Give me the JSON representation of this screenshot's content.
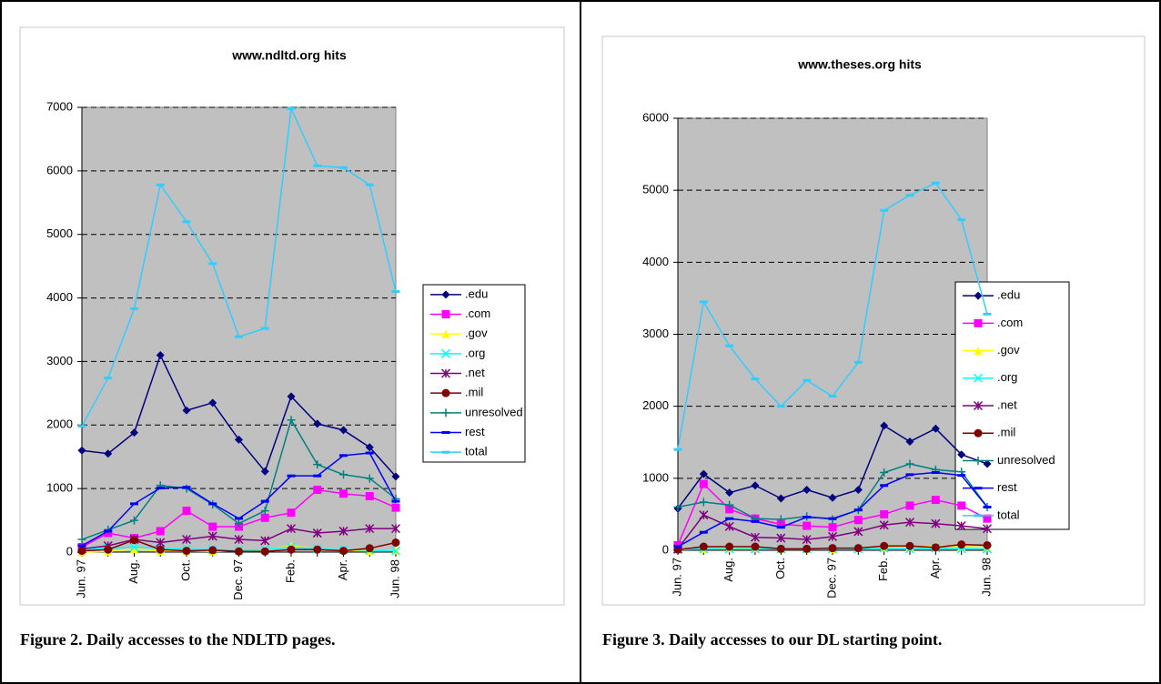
{
  "chart_data": [
    {
      "type": "line",
      "title": "www.ndltd.org hits",
      "caption": "Figure 2. Daily accesses to the NDLTD pages.",
      "categories": [
        "Jun. 97",
        null,
        "Aug.",
        null,
        "Oct.",
        null,
        "Dec. 97",
        null,
        "Feb.",
        null,
        "Apr.",
        null,
        "Jun. 98"
      ],
      "ylim": [
        0,
        7000
      ],
      "yticks": [
        0,
        1000,
        2000,
        3000,
        4000,
        5000,
        6000,
        7000
      ],
      "grid": true,
      "legend": "right",
      "series": [
        {
          "name": ".edu",
          "color": "#000080",
          "marker": "diamond",
          "values": [
            1600,
            1550,
            1880,
            3100,
            2230,
            2350,
            1770,
            1270,
            2450,
            2020,
            1920,
            1650,
            1190
          ]
        },
        {
          "name": ".com",
          "color": "#ff00ff",
          "marker": "square",
          "values": [
            80,
            300,
            220,
            330,
            650,
            400,
            400,
            540,
            620,
            980,
            920,
            880,
            700
          ]
        },
        {
          "name": ".gov",
          "color": "#ffff00",
          "marker": "triangle",
          "values": [
            0,
            10,
            50,
            20,
            20,
            10,
            20,
            30,
            100,
            50,
            30,
            20,
            30
          ]
        },
        {
          "name": ".org",
          "color": "#00ffff",
          "marker": "x",
          "values": [
            50,
            60,
            80,
            60,
            50,
            40,
            30,
            40,
            80,
            50,
            40,
            30,
            20
          ]
        },
        {
          "name": ".net",
          "color": "#800080",
          "marker": "star",
          "values": [
            50,
            100,
            200,
            150,
            200,
            250,
            200,
            180,
            370,
            300,
            330,
            370,
            370
          ]
        },
        {
          "name": ".mil",
          "color": "#800000",
          "marker": "circle",
          "values": [
            20,
            40,
            190,
            40,
            20,
            30,
            10,
            10,
            40,
            40,
            20,
            60,
            150
          ]
        },
        {
          "name": "unresolved",
          "color": "#008080",
          "marker": "plus",
          "values": [
            200,
            350,
            500,
            1050,
            1000,
            750,
            450,
            650,
            2080,
            1380,
            1220,
            1160,
            840
          ]
        },
        {
          "name": "rest",
          "color": "#0000ff",
          "marker": "dash",
          "values": [
            100,
            330,
            760,
            1010,
            1020,
            760,
            530,
            800,
            1200,
            1200,
            1520,
            1560,
            800
          ]
        },
        {
          "name": "total",
          "color": "#33ccff",
          "marker": "dash",
          "values": [
            1980,
            2740,
            3830,
            5780,
            5200,
            4540,
            3390,
            3520,
            6980,
            6080,
            6050,
            5780,
            4100
          ]
        }
      ]
    },
    {
      "type": "line",
      "title": "www.theses.org hits",
      "caption": "Figure 3. Daily accesses to our DL starting point.",
      "categories": [
        "Jun. 97",
        null,
        "Aug.",
        null,
        "Oct.",
        null,
        "Dec. 97",
        null,
        "Feb.",
        null,
        "Apr.",
        null,
        "Jun. 98"
      ],
      "ylim": [
        0,
        6000
      ],
      "yticks": [
        0,
        1000,
        2000,
        3000,
        4000,
        5000,
        6000
      ],
      "grid": true,
      "legend": "right",
      "series": [
        {
          "name": ".edu",
          "color": "#000080",
          "marker": "diamond",
          "values": [
            580,
            1060,
            800,
            900,
            720,
            840,
            730,
            840,
            1730,
            1510,
            1690,
            1330,
            1200
          ]
        },
        {
          "name": ".com",
          "color": "#ff00ff",
          "marker": "square",
          "values": [
            70,
            920,
            570,
            440,
            360,
            340,
            320,
            420,
            500,
            620,
            700,
            620,
            440
          ]
        },
        {
          "name": ".gov",
          "color": "#ffff00",
          "marker": "triangle",
          "values": [
            10,
            20,
            30,
            30,
            20,
            20,
            20,
            30,
            40,
            50,
            60,
            50,
            40
          ]
        },
        {
          "name": ".org",
          "color": "#00ffff",
          "marker": "x",
          "values": [
            10,
            20,
            20,
            20,
            20,
            20,
            20,
            20,
            30,
            20,
            30,
            20,
            20
          ]
        },
        {
          "name": ".net",
          "color": "#800080",
          "marker": "star",
          "values": [
            20,
            490,
            330,
            180,
            170,
            150,
            190,
            260,
            350,
            390,
            370,
            340,
            300
          ]
        },
        {
          "name": ".mil",
          "color": "#800000",
          "marker": "circle",
          "values": [
            10,
            50,
            50,
            50,
            20,
            20,
            30,
            30,
            60,
            60,
            40,
            80,
            70
          ]
        },
        {
          "name": "unresolved",
          "color": "#008080",
          "marker": "plus",
          "values": [
            600,
            670,
            630,
            440,
            430,
            470,
            430,
            560,
            1080,
            1200,
            1120,
            1090,
            600
          ]
        },
        {
          "name": "rest",
          "color": "#0000ff",
          "marker": "dash",
          "values": [
            50,
            250,
            440,
            400,
            320,
            460,
            440,
            560,
            900,
            1050,
            1080,
            1040,
            600
          ]
        },
        {
          "name": "total",
          "color": "#33ccff",
          "marker": "dash",
          "values": [
            1400,
            3450,
            2840,
            2380,
            2000,
            2360,
            2140,
            2610,
            4720,
            4930,
            5100,
            4590,
            3280
          ]
        }
      ]
    }
  ]
}
